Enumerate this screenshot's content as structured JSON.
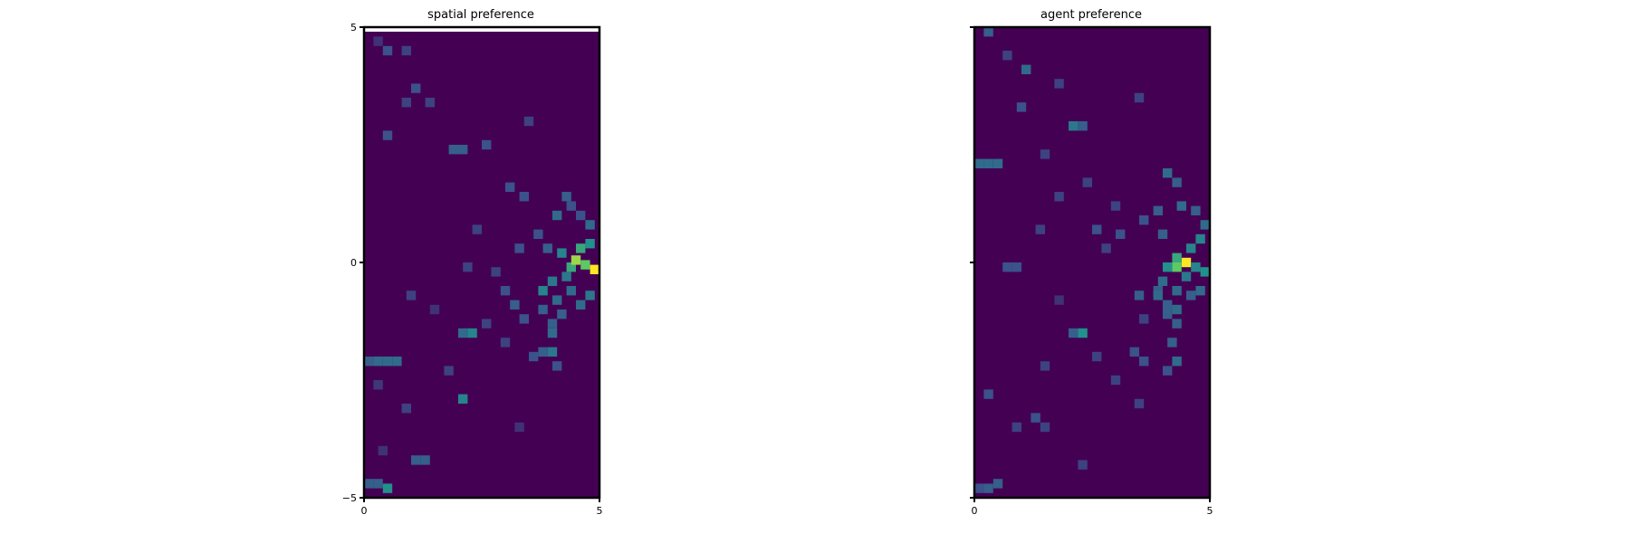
{
  "chart_data": [
    {
      "type": "heatmap",
      "title": "spatial preference",
      "xlim": [
        0,
        5
      ],
      "ylim": [
        -5,
        5
      ],
      "x_ticks": [
        "0",
        "5"
      ],
      "y_ticks": [
        "5",
        "0",
        "−5"
      ],
      "colormap": "viridis",
      "grid": false,
      "blank_top_band": true,
      "cells": [
        [
          0.3,
          -2.6,
          0.17
        ],
        [
          4.4,
          -0.1,
          0.6
        ],
        [
          4.5,
          0.05,
          0.85
        ],
        [
          4.7,
          -0.05,
          0.75
        ],
        [
          4.9,
          -0.15,
          1.0
        ],
        [
          4.6,
          0.3,
          0.6
        ],
        [
          4.8,
          0.4,
          0.5
        ],
        [
          4.2,
          0.2,
          0.45
        ],
        [
          4.0,
          -0.4,
          0.4
        ],
        [
          3.8,
          -0.6,
          0.45
        ],
        [
          4.1,
          -0.8,
          0.35
        ],
        [
          4.4,
          -0.6,
          0.35
        ],
        [
          4.6,
          -0.9,
          0.35
        ],
        [
          4.8,
          -0.7,
          0.4
        ],
        [
          4.3,
          -0.3,
          0.4
        ],
        [
          2.3,
          -1.5,
          0.45
        ],
        [
          2.1,
          -1.5,
          0.35
        ],
        [
          4.0,
          -1.5,
          0.35
        ],
        [
          4.0,
          -1.3,
          0.3
        ],
        [
          4.2,
          -1.1,
          0.3
        ],
        [
          3.8,
          -1.0,
          0.3
        ],
        [
          3.4,
          -1.2,
          0.25
        ],
        [
          3.2,
          -0.9,
          0.3
        ],
        [
          3.0,
          -0.6,
          0.25
        ],
        [
          4.0,
          -1.9,
          0.4
        ],
        [
          3.8,
          -1.9,
          0.3
        ],
        [
          3.6,
          -2.0,
          0.25
        ],
        [
          4.1,
          -2.2,
          0.25
        ],
        [
          0.3,
          -2.1,
          0.35
        ],
        [
          0.5,
          -2.1,
          0.35
        ],
        [
          0.7,
          -2.1,
          0.35
        ],
        [
          0.1,
          -2.1,
          0.3
        ],
        [
          2.1,
          -2.9,
          0.45
        ],
        [
          1.3,
          -4.2,
          0.3
        ],
        [
          1.1,
          -4.2,
          0.3
        ],
        [
          0.1,
          -4.7,
          0.3
        ],
        [
          0.3,
          -4.7,
          0.3
        ],
        [
          0.5,
          -4.8,
          0.5
        ],
        [
          1.9,
          2.4,
          0.3
        ],
        [
          2.1,
          2.4,
          0.3
        ],
        [
          0.5,
          2.7,
          0.25
        ],
        [
          3.1,
          1.6,
          0.25
        ],
        [
          3.4,
          1.4,
          0.25
        ],
        [
          4.3,
          1.4,
          0.3
        ],
        [
          4.1,
          1.0,
          0.35
        ],
        [
          4.6,
          1.0,
          0.25
        ],
        [
          4.8,
          0.8,
          0.35
        ],
        [
          3.7,
          0.6,
          0.25
        ],
        [
          2.4,
          0.7,
          0.2
        ],
        [
          3.3,
          0.3,
          0.25
        ],
        [
          1.1,
          3.7,
          0.25
        ],
        [
          0.9,
          3.4,
          0.2
        ],
        [
          1.4,
          3.4,
          0.2
        ],
        [
          0.5,
          4.5,
          0.25
        ],
        [
          0.9,
          4.5,
          0.2
        ],
        [
          0.3,
          4.7,
          0.15
        ],
        [
          2.6,
          2.5,
          0.25
        ],
        [
          3.5,
          3.0,
          0.2
        ],
        [
          2.2,
          -0.1,
          0.2
        ],
        [
          1.0,
          -0.7,
          0.2
        ],
        [
          4.4,
          1.2,
          0.25
        ],
        [
          3.9,
          0.3,
          0.3
        ],
        [
          2.8,
          -0.2,
          0.2
        ],
        [
          1.5,
          -1.0,
          0.15
        ],
        [
          2.6,
          -1.3,
          0.2
        ],
        [
          3.0,
          -1.7,
          0.2
        ],
        [
          1.8,
          -2.3,
          0.2
        ],
        [
          0.9,
          -3.1,
          0.2
        ],
        [
          3.3,
          -3.5,
          0.15
        ],
        [
          0.4,
          -4.0,
          0.15
        ]
      ]
    },
    {
      "type": "heatmap",
      "title": "agent preference",
      "xlim": [
        0,
        5
      ],
      "ylim": [
        -5,
        5
      ],
      "x_ticks": [
        "0",
        "5"
      ],
      "y_ticks": [
        "",
        "",
        ""
      ],
      "colormap": "viridis",
      "grid": false,
      "blank_top_band": false,
      "cells": [
        [
          4.5,
          0.0,
          1.0
        ],
        [
          4.3,
          -0.1,
          0.75
        ],
        [
          4.3,
          0.1,
          0.6
        ],
        [
          4.6,
          0.3,
          0.45
        ],
        [
          4.8,
          0.5,
          0.45
        ],
        [
          4.1,
          -0.1,
          0.5
        ],
        [
          4.9,
          -0.2,
          0.5
        ],
        [
          4.7,
          -0.1,
          0.45
        ],
        [
          4.5,
          -0.3,
          0.4
        ],
        [
          4.0,
          -0.4,
          0.35
        ],
        [
          3.9,
          -0.6,
          0.3
        ],
        [
          3.5,
          -0.7,
          0.3
        ],
        [
          3.9,
          -0.7,
          0.35
        ],
        [
          4.3,
          -0.6,
          0.35
        ],
        [
          4.6,
          -0.7,
          0.3
        ],
        [
          4.8,
          -0.6,
          0.35
        ],
        [
          4.1,
          -0.9,
          0.3
        ],
        [
          4.3,
          -1.0,
          0.35
        ],
        [
          4.1,
          -1.1,
          0.3
        ],
        [
          4.3,
          -1.3,
          0.3
        ],
        [
          2.3,
          -1.5,
          0.5
        ],
        [
          2.1,
          -1.5,
          0.3
        ],
        [
          4.2,
          -1.7,
          0.3
        ],
        [
          4.3,
          -2.1,
          0.35
        ],
        [
          3.4,
          -1.9,
          0.25
        ],
        [
          3.6,
          -2.1,
          0.25
        ],
        [
          4.1,
          -2.3,
          0.25
        ],
        [
          2.1,
          2.9,
          0.4
        ],
        [
          2.3,
          2.9,
          0.3
        ],
        [
          1.1,
          4.1,
          0.35
        ],
        [
          0.3,
          4.9,
          0.3
        ],
        [
          0.1,
          2.1,
          0.35
        ],
        [
          0.3,
          2.1,
          0.35
        ],
        [
          0.5,
          2.1,
          0.35
        ],
        [
          4.1,
          1.9,
          0.35
        ],
        [
          4.3,
          1.7,
          0.3
        ],
        [
          4.4,
          1.2,
          0.35
        ],
        [
          4.7,
          1.1,
          0.3
        ],
        [
          4.9,
          0.8,
          0.35
        ],
        [
          3.9,
          1.1,
          0.3
        ],
        [
          4.0,
          0.6,
          0.3
        ],
        [
          3.6,
          0.9,
          0.25
        ],
        [
          3.1,
          0.6,
          0.25
        ],
        [
          2.6,
          0.7,
          0.25
        ],
        [
          2.8,
          0.3,
          0.2
        ],
        [
          0.5,
          -4.7,
          0.3
        ],
        [
          0.3,
          -4.8,
          0.3
        ],
        [
          0.1,
          -4.8,
          0.25
        ],
        [
          0.3,
          -2.8,
          0.25
        ],
        [
          1.3,
          -3.3,
          0.25
        ],
        [
          1.5,
          -3.5,
          0.2
        ],
        [
          0.9,
          -3.5,
          0.2
        ],
        [
          2.3,
          -4.3,
          0.2
        ],
        [
          3.5,
          -3.0,
          0.2
        ],
        [
          3.0,
          -2.5,
          0.2
        ],
        [
          2.6,
          -2.0,
          0.2
        ],
        [
          1.5,
          -2.2,
          0.2
        ],
        [
          0.9,
          -0.1,
          0.25
        ],
        [
          0.7,
          -0.1,
          0.25
        ],
        [
          1.4,
          0.7,
          0.2
        ],
        [
          1.8,
          1.4,
          0.2
        ],
        [
          2.4,
          1.7,
          0.2
        ],
        [
          1.5,
          2.3,
          0.2
        ],
        [
          1.0,
          3.3,
          0.25
        ],
        [
          1.8,
          3.8,
          0.2
        ],
        [
          0.7,
          4.4,
          0.2
        ],
        [
          3.5,
          3.5,
          0.2
        ],
        [
          3.0,
          1.2,
          0.2
        ],
        [
          3.6,
          -1.2,
          0.2
        ],
        [
          1.8,
          -0.8,
          0.15
        ]
      ]
    }
  ]
}
